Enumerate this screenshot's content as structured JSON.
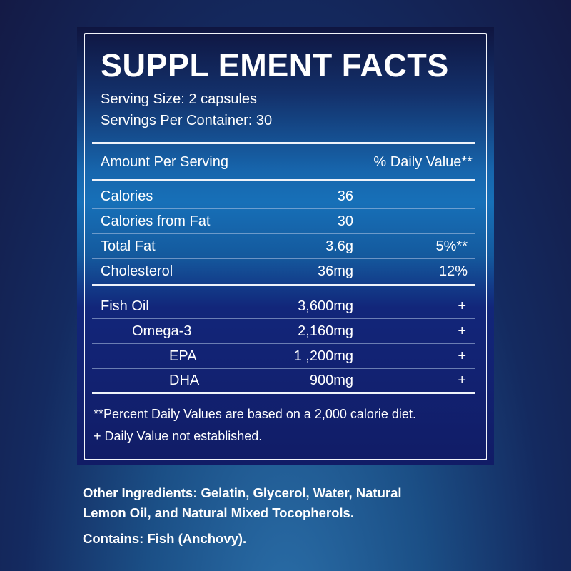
{
  "title": "SUPPL EMENT FACTS",
  "serving_size": "Serving Size: 2 capsules",
  "servings_per_container": "Servings Per Container: 30",
  "header": {
    "amount": "Amount Per Serving",
    "dv": "% Daily Value**"
  },
  "rows": [
    {
      "name": "Calories",
      "amount": "36",
      "dv": ""
    },
    {
      "name": "Calories from Fat",
      "amount": "30",
      "dv": ""
    },
    {
      "name": "Total Fat",
      "amount": "3.6g",
      "dv": "5%**"
    },
    {
      "name": "Cholesterol",
      "amount": "36mg",
      "dv": "12%"
    }
  ],
  "ingredients": [
    {
      "name": "Fish Oil",
      "amount": "3,600mg",
      "dv": "+"
    },
    {
      "name": "Omega-3",
      "amount": "2,160mg",
      "dv": "+"
    },
    {
      "name": "EPA",
      "amount": "1 ,200mg",
      "dv": "+"
    },
    {
      "name": "DHA",
      "amount": "900mg",
      "dv": "+"
    }
  ],
  "footnotes": [
    "**Percent Daily Values are based on a 2,000 calorie diet.",
    "+ Daily Value not established."
  ],
  "other_ingredients_1": "Other Ingredients:  Gelatin, Glycerol, Water, Natural",
  "other_ingredients_2": "Lemon Oil, and Natural Mixed Tocopherols.",
  "contains": "Contains: Fish (Anchovy)."
}
